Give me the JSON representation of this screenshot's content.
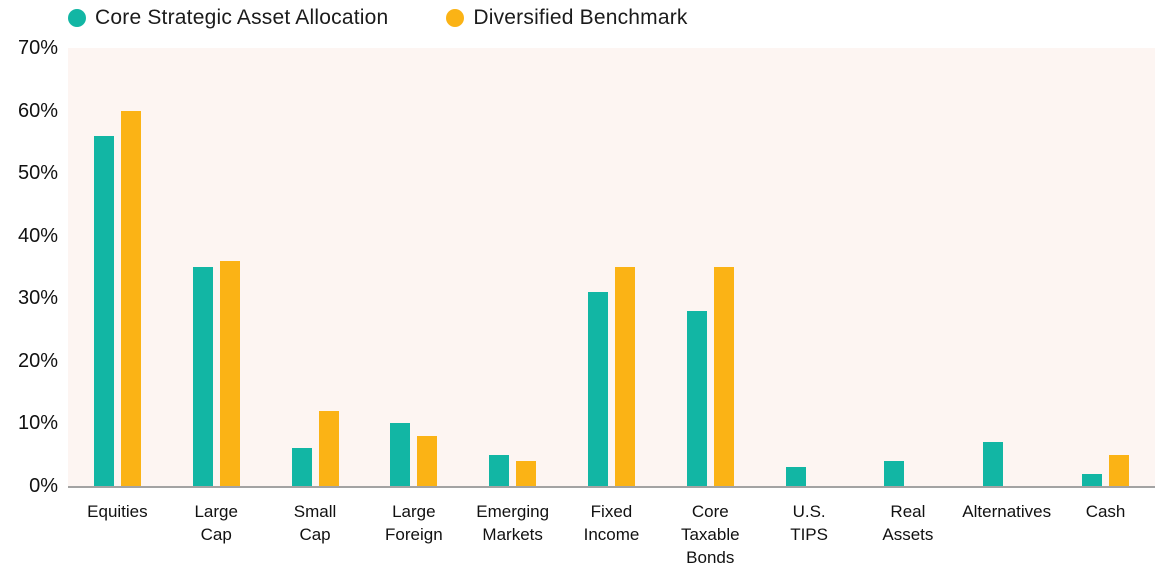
{
  "chart_data": {
    "type": "bar",
    "title": "",
    "xlabel": "",
    "ylabel": "",
    "ylim": [
      0,
      70
    ],
    "yticks": [
      0,
      10,
      20,
      30,
      40,
      50,
      60,
      70
    ],
    "ytick_suffix": "%",
    "grid": false,
    "legend_position": "top-left",
    "categories": [
      "Equities",
      "Large\nCap",
      "Small\nCap",
      "Large\nForeign",
      "Emerging\nMarkets",
      "Fixed\nIncome",
      "Core\nTaxable\nBonds",
      "U.S.\nTIPS",
      "Real\nAssets",
      "Alternatives",
      "Cash"
    ],
    "series": [
      {
        "name": "Core Strategic Asset Allocation",
        "color": "#12b6a4",
        "values": [
          56,
          35,
          6,
          10,
          5,
          31,
          28,
          3,
          4,
          7,
          2
        ]
      },
      {
        "name": "Diversified Benchmark",
        "color": "#fbb315",
        "values": [
          60,
          36,
          12,
          8,
          4,
          35,
          35,
          0,
          0,
          0,
          5
        ]
      }
    ],
    "colors": {
      "plot_background": "#fdf5f2",
      "axis_line": "#a3a3a3",
      "text": "#111111"
    }
  }
}
